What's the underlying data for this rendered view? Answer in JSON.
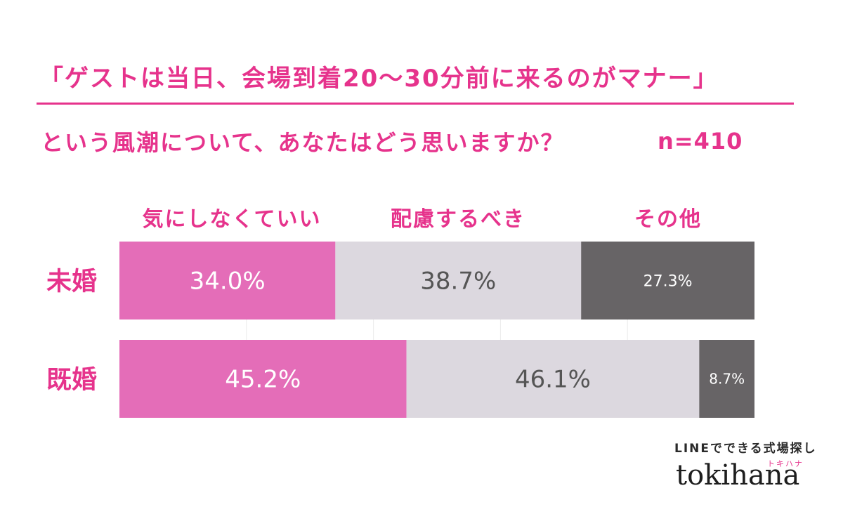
{
  "header": {
    "title": "「ゲストは当日、会場到着20〜30分前に来るのがマナー」",
    "subtitle": "という風潮について、あなたはどう思いますか？",
    "sample": "n=410"
  },
  "branding": {
    "tagline": "LINEでできる式場探し",
    "kana": "トキハナ",
    "logo": "tokihana"
  },
  "colors": {
    "accent": "#e6338c",
    "seg1": "#e46db8",
    "seg2": "#dcd8df",
    "seg3": "#676466"
  },
  "chart_data": {
    "type": "bar",
    "stacked": true,
    "orientation": "horizontal",
    "categories": [
      "未婚",
      "既婚"
    ],
    "series": [
      {
        "name": "気にしなくていい",
        "values": [
          34.0,
          45.2
        ],
        "labels": [
          "34.0%",
          "45.2%"
        ]
      },
      {
        "name": "配慮するべき",
        "values": [
          38.7,
          46.1
        ],
        "labels": [
          "38.7%",
          "46.1%"
        ]
      },
      {
        "name": "その他",
        "values": [
          27.3,
          8.7
        ],
        "labels": [
          "27.3%",
          "8.7%"
        ]
      }
    ],
    "xlim": [
      0,
      100
    ],
    "legend": "top"
  }
}
